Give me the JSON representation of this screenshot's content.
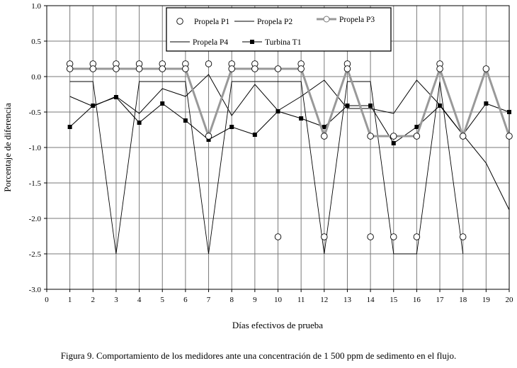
{
  "caption": "Figura 9. Comportamiento de los medidores ante una concentración de 1 500 ppm de sedimento en el flujo.",
  "chart_data": {
    "type": "line",
    "xlabel": "Días efectivos de prueba",
    "ylabel": "Porcentaje de diferencia",
    "xlim": [
      0,
      20
    ],
    "ylim": [
      -3.0,
      1.0
    ],
    "x_ticks": [
      0,
      1,
      2,
      3,
      4,
      5,
      6,
      7,
      8,
      9,
      10,
      11,
      12,
      13,
      14,
      15,
      16,
      17,
      18,
      19,
      20
    ],
    "y_ticks": [
      1.0,
      0.5,
      0.0,
      -0.5,
      -1.0,
      -1.5,
      -2.0,
      -2.5,
      -3.0
    ],
    "y_tick_labels": [
      "1.0",
      "0.5",
      "0.0",
      "-0.5",
      "-1.0",
      "-1.5",
      "-2.0",
      "-2.5",
      "-3.0"
    ],
    "grid": true,
    "legend_position": "top-center",
    "series": [
      {
        "name": "Propela P1",
        "style": "markers-only",
        "marker": "open-circle",
        "color": "#000000",
        "points": [
          [
            1,
            0.18
          ],
          [
            1,
            0.11
          ],
          [
            2,
            0.18
          ],
          [
            2,
            0.11
          ],
          [
            3,
            0.18
          ],
          [
            3,
            0.11
          ],
          [
            4,
            0.18
          ],
          [
            4,
            0.11
          ],
          [
            5,
            0.18
          ],
          [
            5,
            0.11
          ],
          [
            6,
            0.18
          ],
          [
            6,
            0.11
          ],
          [
            7,
            0.18
          ],
          [
            7,
            -0.84
          ],
          [
            8,
            0.18
          ],
          [
            8,
            0.11
          ],
          [
            9,
            0.18
          ],
          [
            9,
            0.11
          ],
          [
            10,
            0.11
          ],
          [
            10,
            -2.26
          ],
          [
            11,
            0.18
          ],
          [
            11,
            0.11
          ],
          [
            12,
            -0.84
          ],
          [
            12,
            -2.26
          ],
          [
            13,
            0.18
          ],
          [
            13,
            0.11
          ],
          [
            14,
            -0.84
          ],
          [
            14,
            -2.26
          ],
          [
            15,
            -0.84
          ],
          [
            15,
            -2.26
          ],
          [
            16,
            -0.84
          ],
          [
            16,
            -2.26
          ],
          [
            17,
            0.18
          ],
          [
            17,
            0.11
          ],
          [
            18,
            -0.84
          ],
          [
            18,
            -2.26
          ],
          [
            19,
            0.11
          ],
          [
            20,
            -0.84
          ]
        ]
      },
      {
        "name": "Propela P2",
        "style": "line",
        "color": "#000000",
        "points": [
          [
            1,
            -0.28
          ],
          [
            2,
            -0.42
          ],
          [
            3,
            -0.28
          ],
          [
            4,
            -0.52
          ],
          [
            5,
            -0.17
          ],
          [
            6,
            -0.28
          ],
          [
            7,
            0.03
          ],
          [
            8,
            -0.55
          ],
          [
            9,
            -0.11
          ],
          [
            10,
            -0.48
          ],
          [
            11,
            -0.28
          ],
          [
            12,
            -0.05
          ],
          [
            13,
            -0.45
          ],
          [
            14,
            -0.45
          ],
          [
            15,
            -0.52
          ],
          [
            16,
            -0.05
          ],
          [
            17,
            -0.4
          ],
          [
            18,
            -0.82
          ],
          [
            19,
            -1.22
          ],
          [
            20,
            -1.88
          ]
        ]
      },
      {
        "name": "Propela P3",
        "style": "line+open-circle",
        "color": "#999999",
        "points": [
          [
            1,
            0.11
          ],
          [
            2,
            0.11
          ],
          [
            3,
            0.11
          ],
          [
            4,
            0.11
          ],
          [
            5,
            0.11
          ],
          [
            6,
            0.11
          ],
          [
            7,
            -0.84
          ],
          [
            8,
            0.11
          ],
          [
            9,
            0.11
          ],
          [
            10,
            0.11
          ],
          [
            11,
            0.11
          ],
          [
            12,
            -0.84
          ],
          [
            13,
            0.11
          ],
          [
            14,
            -0.84
          ],
          [
            15,
            -0.84
          ],
          [
            16,
            -0.84
          ],
          [
            17,
            0.11
          ],
          [
            18,
            -0.84
          ],
          [
            19,
            0.11
          ],
          [
            20,
            -0.84
          ]
        ]
      },
      {
        "name": "Propela P4",
        "style": "line",
        "color": "#000000",
        "points": [
          [
            1,
            -0.07
          ],
          [
            2,
            -0.07
          ],
          [
            3,
            -2.5
          ],
          [
            4,
            -0.07
          ],
          [
            5,
            -0.07
          ],
          [
            6,
            -0.07
          ],
          [
            7,
            -2.5
          ],
          [
            8,
            -0.07
          ],
          [
            9,
            -0.07
          ],
          [
            10,
            -0.07
          ],
          [
            11,
            -0.07
          ],
          [
            12,
            -2.5
          ],
          [
            13,
            -0.07
          ],
          [
            14,
            -0.07
          ],
          [
            15,
            -2.5
          ],
          [
            16,
            -2.5
          ],
          [
            17,
            -0.07
          ],
          [
            18,
            -2.5
          ]
        ]
      },
      {
        "name": "Turbina T1",
        "style": "line+filled-square",
        "color": "#000000",
        "points": [
          [
            1,
            -0.71
          ],
          [
            2,
            -0.41
          ],
          [
            3,
            -0.29
          ],
          [
            4,
            -0.65
          ],
          [
            5,
            -0.38
          ],
          [
            6,
            -0.62
          ],
          [
            7,
            -0.89
          ],
          [
            8,
            -0.71
          ],
          [
            9,
            -0.82
          ],
          [
            10,
            -0.49
          ],
          [
            11,
            -0.59
          ],
          [
            12,
            -0.71
          ],
          [
            13,
            -0.41
          ],
          [
            14,
            -0.41
          ],
          [
            15,
            -0.94
          ],
          [
            16,
            -0.71
          ],
          [
            17,
            -0.41
          ],
          [
            18,
            -0.82
          ],
          [
            19,
            -0.38
          ],
          [
            20,
            -0.5
          ]
        ]
      }
    ]
  }
}
